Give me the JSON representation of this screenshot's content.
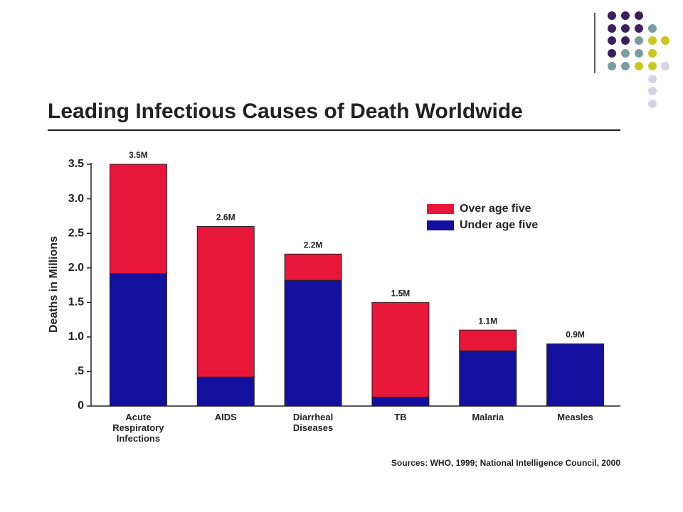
{
  "chart_data": {
    "type": "stacked_bar",
    "title": "Leading Infectious Causes of Death Worldwide",
    "y_label": "Deaths in Millions",
    "source": "Sources:  WHO, 1999; National Intelligence Council, 2000",
    "categories": [
      "Acute\nRespiratory\nInfections",
      "AIDS",
      "Diarrheal\nDiseases",
      "TB",
      "Malaria",
      "Measles"
    ],
    "series": [
      {
        "name": "Under age five",
        "color": "#14109e",
        "values": [
          1.92,
          0.42,
          1.82,
          0.13,
          0.8,
          0.9
        ]
      },
      {
        "name": "Over age five",
        "color": "#e8173a",
        "values": [
          1.58,
          2.18,
          0.38,
          1.37,
          0.3,
          0
        ]
      }
    ],
    "totals": {
      "values": [
        3.5,
        2.6,
        2.2,
        1.5,
        1.1,
        0.9
      ],
      "value_labels": [
        "3.5M",
        "2.6M",
        "2.2M",
        "1.5M",
        "1.1M",
        "0.9M"
      ]
    },
    "ylim": [
      0,
      3.5
    ],
    "yticks": [
      0,
      {
        "value": 0.5,
        "label": ".5"
      },
      {
        "value": 1,
        "label": "1.0"
      },
      1.5,
      {
        "value": 2,
        "label": "2.0"
      },
      2.5,
      {
        "value": 3,
        "label": "3.0"
      },
      3.5
    ],
    "legend": "upper right"
  }
}
